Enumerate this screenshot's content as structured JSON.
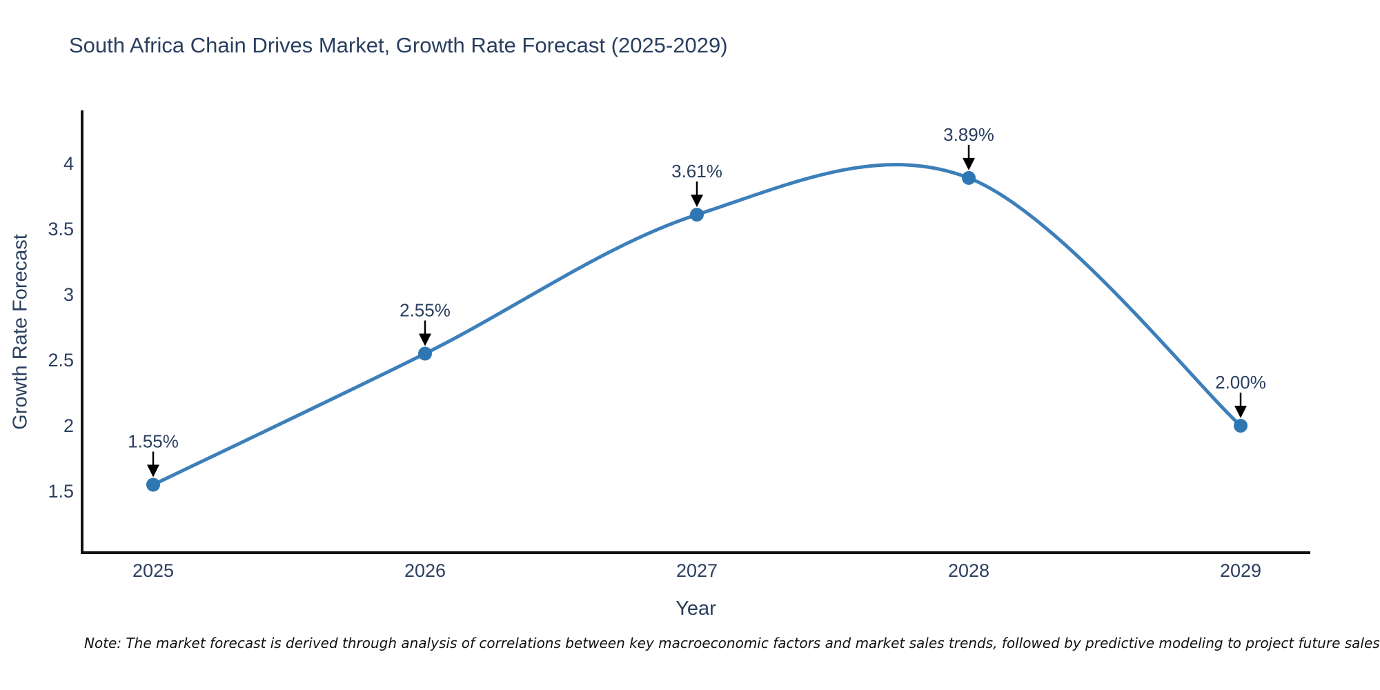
{
  "chart_data": {
    "type": "line",
    "title": "South Africa Chain Drives Market, Growth Rate Forecast (2025-2029)",
    "xlabel": "Year",
    "ylabel": "Growth Rate Forecast",
    "x": [
      2025,
      2026,
      2027,
      2028,
      2029
    ],
    "values": [
      1.55,
      2.55,
      3.61,
      3.89,
      2.0
    ],
    "point_labels": [
      "1.55%",
      "2.55%",
      "3.61%",
      "3.89%",
      "2.00%"
    ],
    "yticks": [
      1.5,
      2,
      2.5,
      3,
      3.5,
      4
    ],
    "ylim": [
      1.02,
      4.4
    ],
    "grid": false,
    "legend_position": "none",
    "curve_style": "spline",
    "colors": {
      "line": "#3d7fba",
      "marker": "#2f77b3",
      "axis": "#111111",
      "text": "#2a3f5f",
      "arrow": "#000000"
    }
  },
  "note": {
    "text": "Note: The market forecast is derived through analysis of correlations between key macroeconomic factors and market sales trends, followed by predictive modeling to project future sales"
  }
}
